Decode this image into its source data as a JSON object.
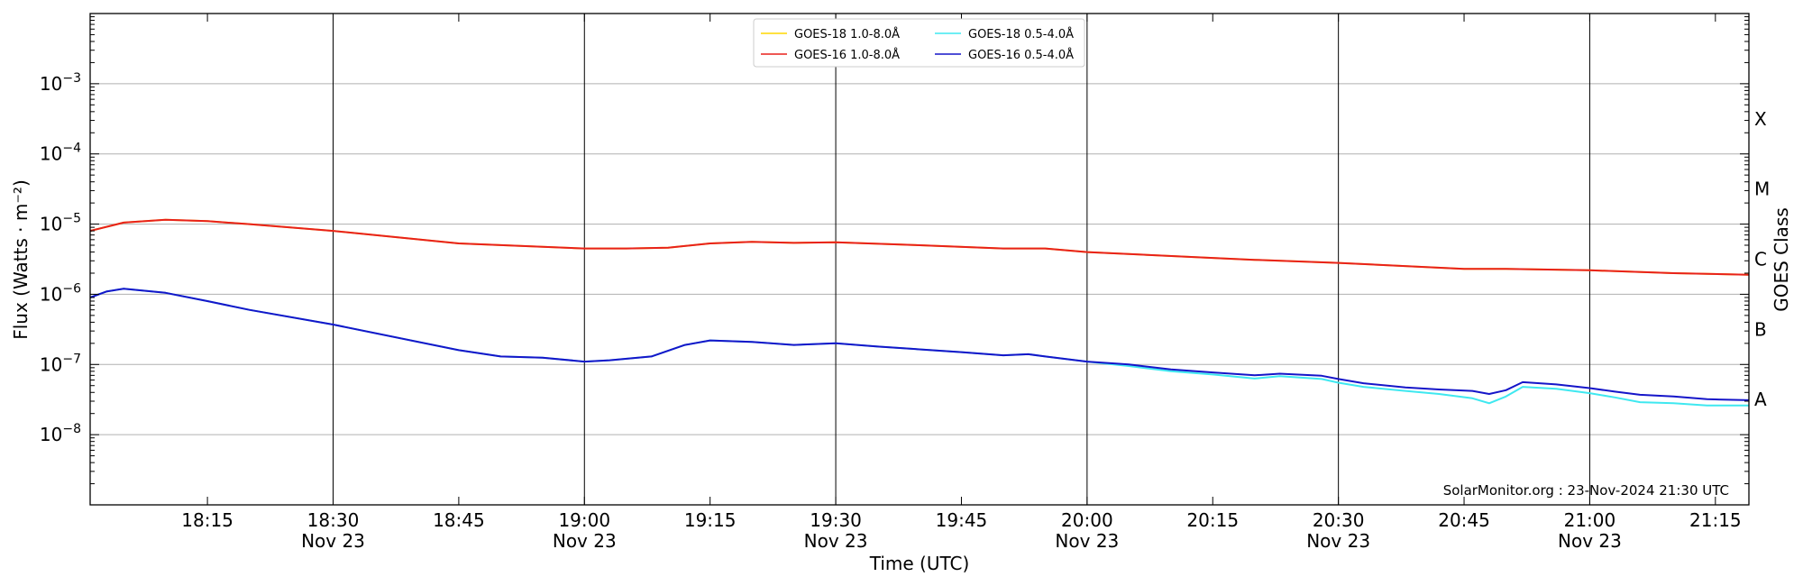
{
  "chart_data": {
    "type": "line",
    "ylabel": "Flux (Watts · m⁻²)",
    "ylabel_right": "GOES Class",
    "xlabel": "Time (UTC)",
    "yscale": "log",
    "ylim": [
      1e-09,
      0.01
    ],
    "y_ticks": [
      {
        "value": 1e-08,
        "exp": "−8"
      },
      {
        "value": 1e-07,
        "exp": "−7"
      },
      {
        "value": 1e-06,
        "exp": "−6"
      },
      {
        "value": 1e-05,
        "exp": "−5"
      },
      {
        "value": 0.0001,
        "exp": "−4"
      },
      {
        "value": 0.001,
        "exp": "−3"
      }
    ],
    "goes_classes": [
      {
        "label": "A",
        "value": 3.16e-08
      },
      {
        "label": "B",
        "value": 3.16e-07
      },
      {
        "label": "C",
        "value": 3.16e-06
      },
      {
        "label": "M",
        "value": 3.16e-05
      },
      {
        "label": "X",
        "value": 0.000316
      }
    ],
    "x_range": [
      "18:01",
      "21:19"
    ],
    "x_ticks": [
      {
        "time": "18:15",
        "line1": "18:15",
        "line2": ""
      },
      {
        "time": "18:30",
        "line1": "18:30",
        "line2": "Nov 23"
      },
      {
        "time": "18:45",
        "line1": "18:45",
        "line2": ""
      },
      {
        "time": "19:00",
        "line1": "19:00",
        "line2": "Nov 23"
      },
      {
        "time": "19:15",
        "line1": "19:15",
        "line2": ""
      },
      {
        "time": "19:30",
        "line1": "19:30",
        "line2": "Nov 23"
      },
      {
        "time": "19:45",
        "line1": "19:45",
        "line2": ""
      },
      {
        "time": "20:00",
        "line1": "20:00",
        "line2": "Nov 23"
      },
      {
        "time": "20:15",
        "line1": "20:15",
        "line2": ""
      },
      {
        "time": "20:30",
        "line1": "20:30",
        "line2": "Nov 23"
      },
      {
        "time": "20:45",
        "line1": "20:45",
        "line2": ""
      },
      {
        "time": "21:00",
        "line1": "21:00",
        "line2": "Nov 23"
      },
      {
        "time": "21:15",
        "line1": "21:15",
        "line2": ""
      }
    ],
    "grid": "horizontal at decades",
    "legend_position": "top-center",
    "series": [
      {
        "name": "GOES-18 1.0-8.0Å",
        "color": "#ffd700",
        "time": [
          "18:01",
          "18:05",
          "18:10",
          "18:15",
          "18:20",
          "18:30",
          "18:45",
          "19:00",
          "19:05",
          "19:10",
          "19:15",
          "19:20",
          "19:25",
          "19:30",
          "19:40",
          "19:50",
          "19:55",
          "20:00",
          "20:15",
          "20:20",
          "20:30",
          "20:45",
          "20:50",
          "21:00",
          "21:10",
          "21:19"
        ],
        "values": [
          8e-06,
          1.05e-05,
          1.15e-05,
          1.1e-05,
          1e-05,
          8e-06,
          5.3e-06,
          4.5e-06,
          4.5e-06,
          4.6e-06,
          5.3e-06,
          5.6e-06,
          5.4e-06,
          5.5e-06,
          5e-06,
          4.5e-06,
          4.5e-06,
          4e-06,
          3.3e-06,
          3.1e-06,
          2.8e-06,
          2.3e-06,
          2.3e-06,
          2.2e-06,
          2e-06,
          1.9e-06
        ]
      },
      {
        "name": "GOES-16 1.0-8.0Å",
        "color": "#e8211c",
        "time": [
          "18:01",
          "18:05",
          "18:10",
          "18:15",
          "18:20",
          "18:30",
          "18:45",
          "19:00",
          "19:05",
          "19:10",
          "19:15",
          "19:20",
          "19:25",
          "19:30",
          "19:40",
          "19:50",
          "19:55",
          "20:00",
          "20:15",
          "20:20",
          "20:30",
          "20:45",
          "20:50",
          "21:00",
          "21:10",
          "21:19"
        ],
        "values": [
          8e-06,
          1.05e-05,
          1.15e-05,
          1.1e-05,
          1e-05,
          8e-06,
          5.3e-06,
          4.5e-06,
          4.5e-06,
          4.6e-06,
          5.3e-06,
          5.6e-06,
          5.4e-06,
          5.5e-06,
          5e-06,
          4.5e-06,
          4.5e-06,
          4e-06,
          3.3e-06,
          3.1e-06,
          2.8e-06,
          2.3e-06,
          2.3e-06,
          2.2e-06,
          2e-06,
          1.9e-06
        ]
      },
      {
        "name": "GOES-18 0.5-4.0Å",
        "color": "#3fe8f0",
        "time": [
          "18:01",
          "18:03",
          "18:05",
          "18:10",
          "18:15",
          "18:20",
          "18:30",
          "18:45",
          "18:50",
          "18:55",
          "19:00",
          "19:03",
          "19:08",
          "19:12",
          "19:15",
          "19:20",
          "19:25",
          "19:30",
          "19:35",
          "19:45",
          "19:50",
          "19:53",
          "19:55",
          "20:00",
          "20:05",
          "20:10",
          "20:15",
          "20:20",
          "20:23",
          "20:28",
          "20:30",
          "20:33",
          "20:38",
          "20:42",
          "20:46",
          "20:48",
          "20:50",
          "20:52",
          "20:56",
          "21:00",
          "21:03",
          "21:06",
          "21:10",
          "21:14",
          "21:19"
        ],
        "values": [
          9e-07,
          1.1e-06,
          1.2e-06,
          1.05e-06,
          8e-07,
          6e-07,
          3.7e-07,
          1.6e-07,
          1.3e-07,
          1.25e-07,
          1.1e-07,
          1.15e-07,
          1.3e-07,
          1.9e-07,
          2.2e-07,
          2.1e-07,
          1.9e-07,
          2e-07,
          1.8e-07,
          1.5e-07,
          1.35e-07,
          1.4e-07,
          1.3e-07,
          1.1e-07,
          9.5e-08,
          8e-08,
          7.2e-08,
          6.3e-08,
          6.8e-08,
          6.2e-08,
          5.5e-08,
          4.8e-08,
          4.2e-08,
          3.8e-08,
          3.3e-08,
          2.8e-08,
          3.5e-08,
          4.8e-08,
          4.5e-08,
          3.9e-08,
          3.4e-08,
          2.9e-08,
          2.8e-08,
          2.6e-08,
          2.6e-08
        ]
      },
      {
        "name": "GOES-16 0.5-4.0Å",
        "color": "#1515c9",
        "time": [
          "18:01",
          "18:03",
          "18:05",
          "18:10",
          "18:15",
          "18:20",
          "18:30",
          "18:45",
          "18:50",
          "18:55",
          "19:00",
          "19:03",
          "19:08",
          "19:12",
          "19:15",
          "19:20",
          "19:25",
          "19:30",
          "19:35",
          "19:45",
          "19:50",
          "19:53",
          "19:55",
          "20:00",
          "20:05",
          "20:10",
          "20:15",
          "20:20",
          "20:23",
          "20:28",
          "20:30",
          "20:33",
          "20:38",
          "20:42",
          "20:46",
          "20:48",
          "20:50",
          "20:52",
          "20:56",
          "21:00",
          "21:03",
          "21:06",
          "21:10",
          "21:14",
          "21:19"
        ],
        "values": [
          9e-07,
          1.1e-06,
          1.2e-06,
          1.05e-06,
          8e-07,
          6e-07,
          3.7e-07,
          1.6e-07,
          1.3e-07,
          1.25e-07,
          1.1e-07,
          1.15e-07,
          1.3e-07,
          1.9e-07,
          2.2e-07,
          2.1e-07,
          1.9e-07,
          2e-07,
          1.8e-07,
          1.5e-07,
          1.35e-07,
          1.4e-07,
          1.3e-07,
          1.1e-07,
          1e-07,
          8.5e-08,
          7.7e-08,
          7e-08,
          7.4e-08,
          6.9e-08,
          6.2e-08,
          5.4e-08,
          4.7e-08,
          4.4e-08,
          4.2e-08,
          3.8e-08,
          4.3e-08,
          5.6e-08,
          5.2e-08,
          4.6e-08,
          4.1e-08,
          3.7e-08,
          3.5e-08,
          3.2e-08,
          3.1e-08
        ]
      }
    ],
    "annotation": "SolarMonitor.org : 23-Nov-2024 21:30 UTC"
  }
}
